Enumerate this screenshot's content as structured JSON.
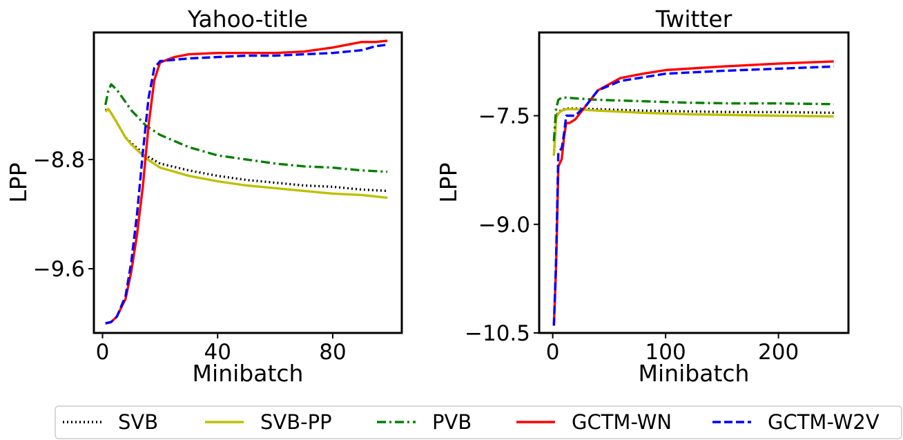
{
  "chart_data": [
    {
      "type": "line",
      "title": "Yahoo-title",
      "xlabel": "Minibatch",
      "ylabel": "LPP",
      "xlim": [
        -3,
        104
      ],
      "ylim": [
        -10.07,
        -7.87
      ],
      "xticks": [
        0,
        40,
        80
      ],
      "xtick_labels": [
        "0",
        "40",
        "80"
      ],
      "yticks": [
        -8.8,
        -9.6
      ],
      "ytick_labels": [
        "−8.8",
        "−9.6"
      ],
      "series": [
        {
          "name": "SVB",
          "color": "#000000",
          "dash": "dotted",
          "x": [
            1,
            2,
            3,
            5,
            8,
            10,
            15,
            20,
            30,
            40,
            50,
            60,
            70,
            80,
            90,
            99
          ],
          "y": [
            -8.44,
            -8.43,
            -8.46,
            -8.53,
            -8.64,
            -8.68,
            -8.77,
            -8.83,
            -8.88,
            -8.92,
            -8.95,
            -8.97,
            -8.99,
            -9.0,
            -9.02,
            -9.03
          ]
        },
        {
          "name": "SVB-PP",
          "color": "#bfbf00",
          "dash": "solid",
          "x": [
            1,
            2,
            3,
            5,
            8,
            10,
            15,
            20,
            30,
            40,
            50,
            60,
            70,
            80,
            90,
            99
          ],
          "y": [
            -8.45,
            -8.43,
            -8.46,
            -8.53,
            -8.64,
            -8.69,
            -8.79,
            -8.86,
            -8.92,
            -8.96,
            -8.99,
            -9.01,
            -9.03,
            -9.05,
            -9.06,
            -9.08
          ]
        },
        {
          "name": "PVB",
          "color": "#008000",
          "dash": "dashdot",
          "x": [
            1,
            2,
            3,
            5,
            8,
            10,
            15,
            20,
            30,
            40,
            50,
            60,
            70,
            80,
            90,
            99
          ],
          "y": [
            -8.4,
            -8.3,
            -8.25,
            -8.29,
            -8.38,
            -8.44,
            -8.55,
            -8.62,
            -8.71,
            -8.77,
            -8.8,
            -8.83,
            -8.85,
            -8.86,
            -8.88,
            -8.89
          ]
        },
        {
          "name": "GCTM-WN",
          "color": "#ff0000",
          "dash": "solid",
          "x": [
            1,
            3,
            5,
            8,
            10,
            12,
            14,
            16,
            18,
            20,
            25,
            30,
            40,
            50,
            60,
            70,
            80,
            85,
            90,
            95,
            99
          ],
          "y": [
            -10.0,
            -9.99,
            -9.95,
            -9.82,
            -9.62,
            -9.35,
            -9.0,
            -8.55,
            -8.22,
            -8.09,
            -8.05,
            -8.03,
            -8.02,
            -8.02,
            -8.02,
            -8.01,
            -7.98,
            -7.96,
            -7.94,
            -7.94,
            -7.93
          ]
        },
        {
          "name": "GCTM-W2V",
          "color": "#0000ff",
          "dash": "dashed",
          "x": [
            1,
            3,
            5,
            8,
            10,
            12,
            14,
            16,
            18,
            20,
            25,
            30,
            40,
            50,
            60,
            70,
            80,
            90,
            95,
            99
          ],
          "y": [
            -10.0,
            -9.99,
            -9.95,
            -9.8,
            -9.55,
            -9.2,
            -8.75,
            -8.35,
            -8.13,
            -8.08,
            -8.07,
            -8.06,
            -8.05,
            -8.04,
            -8.04,
            -8.03,
            -8.02,
            -8.0,
            -7.97,
            -7.96
          ]
        }
      ]
    },
    {
      "type": "line",
      "title": "Twitter",
      "xlabel": "Minibatch",
      "ylabel": "LPP",
      "xlim": [
        -12,
        262
      ],
      "ylim": [
        -10.5,
        -6.35
      ],
      "xticks": [
        0,
        100,
        200
      ],
      "xtick_labels": [
        "0",
        "100",
        "200"
      ],
      "yticks": [
        -7.5,
        -9.0,
        -10.5
      ],
      "ytick_labels": [
        "−7.5",
        "−9.0",
        "−10.5"
      ],
      "series": [
        {
          "name": "SVB",
          "color": "#000000",
          "dash": "dotted",
          "x": [
            1,
            3,
            5,
            8,
            12,
            20,
            40,
            80,
            120,
            160,
            200,
            249
          ],
          "y": [
            -8.05,
            -7.52,
            -7.45,
            -7.42,
            -7.4,
            -7.4,
            -7.41,
            -7.43,
            -7.44,
            -7.45,
            -7.45,
            -7.46
          ]
        },
        {
          "name": "SVB-PP",
          "color": "#bfbf00",
          "dash": "solid",
          "x": [
            1,
            3,
            5,
            8,
            12,
            20,
            40,
            80,
            120,
            160,
            200,
            249
          ],
          "y": [
            -8.05,
            -7.54,
            -7.47,
            -7.43,
            -7.41,
            -7.41,
            -7.43,
            -7.46,
            -7.48,
            -7.49,
            -7.5,
            -7.51
          ]
        },
        {
          "name": "PVB",
          "color": "#008000",
          "dash": "dashdot",
          "x": [
            1,
            3,
            5,
            8,
            12,
            20,
            40,
            80,
            120,
            160,
            200,
            249
          ],
          "y": [
            -7.85,
            -7.4,
            -7.28,
            -7.25,
            -7.25,
            -7.26,
            -7.28,
            -7.3,
            -7.32,
            -7.33,
            -7.33,
            -7.34
          ]
        },
        {
          "name": "GCTM-WN",
          "color": "#ff0000",
          "dash": "solid",
          "x": [
            1,
            3,
            5,
            8,
            10,
            12,
            15,
            20,
            30,
            40,
            60,
            80,
            100,
            150,
            200,
            249
          ],
          "y": [
            -10.4,
            -9.6,
            -8.2,
            -8.1,
            -7.8,
            -7.6,
            -7.6,
            -7.55,
            -7.35,
            -7.15,
            -6.98,
            -6.92,
            -6.87,
            -6.82,
            -6.78,
            -6.75
          ]
        },
        {
          "name": "GCTM-W2V",
          "color": "#0000ff",
          "dash": "dashed",
          "x": [
            1,
            3,
            5,
            8,
            10,
            12,
            15,
            20,
            30,
            40,
            60,
            80,
            100,
            150,
            200,
            249
          ],
          "y": [
            -10.4,
            -9.5,
            -8.0,
            -7.95,
            -7.75,
            -7.5,
            -7.5,
            -7.5,
            -7.35,
            -7.15,
            -7.02,
            -6.97,
            -6.92,
            -6.88,
            -6.85,
            -6.82
          ]
        }
      ]
    }
  ],
  "legend": {
    "placement": "bottom",
    "entries": [
      "SVB",
      "SVB-PP",
      "PVB",
      "GCTM-WN",
      "GCTM-W2V"
    ]
  }
}
